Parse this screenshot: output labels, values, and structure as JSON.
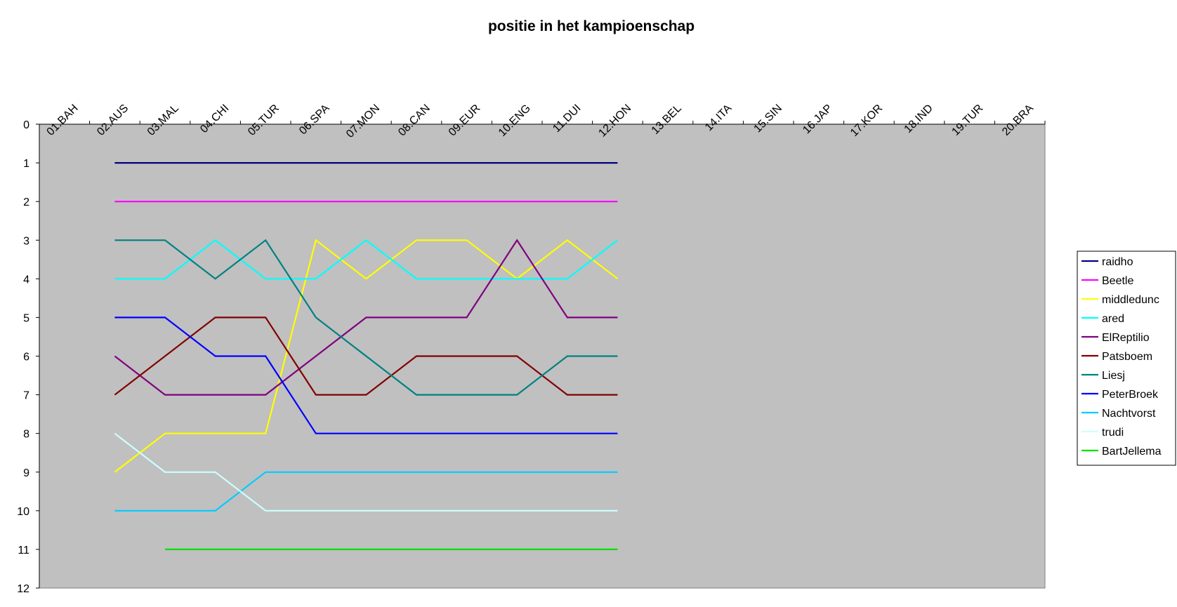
{
  "chart_data": {
    "type": "line",
    "title": "positie in het kampioenschap",
    "categories": [
      "01.BAH",
      "02.AUS",
      "03.MAL",
      "04.CHI",
      "05.TUR",
      "06.SPA",
      "07.MON",
      "08.CAN",
      "09.EUR",
      "10.ENG",
      "11.DUI",
      "12.HON",
      "13.BEL",
      "14.ITA",
      "15.SIN",
      "16.JAP",
      "17.KOR",
      "18.IND",
      "19.TUR",
      "20.BRA"
    ],
    "ylim": [
      0,
      12
    ],
    "yticks": [
      0,
      1,
      2,
      3,
      4,
      5,
      6,
      7,
      8,
      9,
      10,
      11,
      12
    ],
    "y_reversed": true,
    "grid": false,
    "legend": "right",
    "series": [
      {
        "name": "raidho",
        "color": "#000080",
        "values": [
          null,
          1,
          1,
          1,
          1,
          1,
          1,
          1,
          1,
          1,
          1,
          1,
          null,
          null,
          null,
          null,
          null,
          null,
          null,
          null
        ]
      },
      {
        "name": "Beetle",
        "color": "#ff00ff",
        "values": [
          null,
          2,
          2,
          2,
          2,
          2,
          2,
          2,
          2,
          2,
          2,
          2,
          null,
          null,
          null,
          null,
          null,
          null,
          null,
          null
        ]
      },
      {
        "name": "middledunc",
        "color": "#ffff00",
        "values": [
          null,
          9,
          8,
          8,
          8,
          3,
          4,
          3,
          3,
          4,
          3,
          4,
          null,
          null,
          null,
          null,
          null,
          null,
          null,
          null
        ]
      },
      {
        "name": "ared",
        "color": "#00ffff",
        "values": [
          null,
          4,
          4,
          3,
          4,
          4,
          3,
          4,
          4,
          4,
          4,
          3,
          null,
          null,
          null,
          null,
          null,
          null,
          null,
          null
        ]
      },
      {
        "name": "ElReptilio",
        "color": "#800080",
        "values": [
          null,
          6,
          7,
          7,
          7,
          6,
          5,
          5,
          5,
          3,
          5,
          5,
          null,
          null,
          null,
          null,
          null,
          null,
          null,
          null
        ]
      },
      {
        "name": "Patsboem",
        "color": "#800000",
        "values": [
          null,
          7,
          6,
          5,
          5,
          7,
          7,
          6,
          6,
          6,
          7,
          7,
          null,
          null,
          null,
          null,
          null,
          null,
          null,
          null
        ]
      },
      {
        "name": "Liesj",
        "color": "#008080",
        "values": [
          null,
          3,
          3,
          4,
          3,
          5,
          6,
          7,
          7,
          7,
          6,
          6,
          null,
          null,
          null,
          null,
          null,
          null,
          null,
          null
        ]
      },
      {
        "name": "PeterBroek",
        "color": "#0000ff",
        "values": [
          null,
          5,
          5,
          6,
          6,
          8,
          8,
          8,
          8,
          8,
          8,
          8,
          null,
          null,
          null,
          null,
          null,
          null,
          null,
          null
        ]
      },
      {
        "name": "Nachtvorst",
        "color": "#00ccff",
        "values": [
          null,
          10,
          10,
          10,
          9,
          9,
          9,
          9,
          9,
          9,
          9,
          9,
          null,
          null,
          null,
          null,
          null,
          null,
          null,
          null
        ]
      },
      {
        "name": "trudi",
        "color": "#ccffff",
        "values": [
          null,
          8,
          9,
          9,
          10,
          10,
          10,
          10,
          10,
          10,
          10,
          10,
          null,
          null,
          null,
          null,
          null,
          null,
          null,
          null
        ]
      },
      {
        "name": "BartJellema",
        "color": "#00e000",
        "values": [
          null,
          null,
          11,
          11,
          11,
          11,
          11,
          11,
          11,
          11,
          11,
          11,
          null,
          null,
          null,
          null,
          null,
          null,
          null,
          null
        ]
      }
    ]
  }
}
